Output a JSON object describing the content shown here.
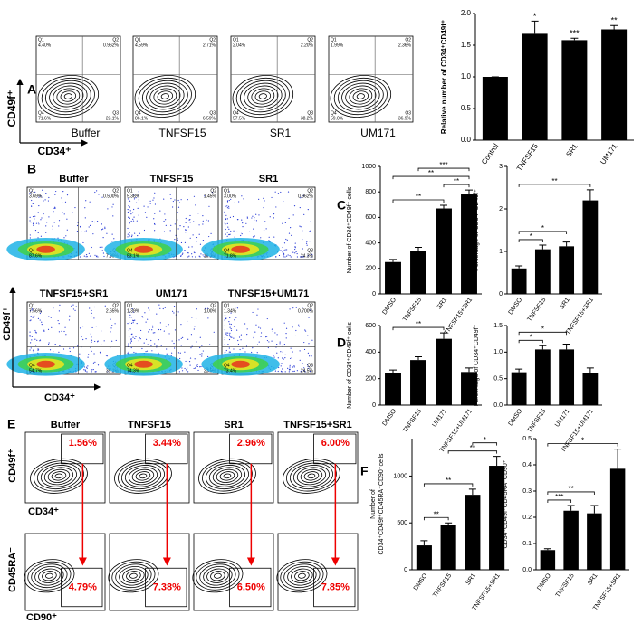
{
  "panel_labels": [
    "A",
    "B",
    "C",
    "D",
    "E",
    "F"
  ],
  "axis_labels": {
    "cd49f": "CD49f⁺",
    "cd34": "CD34⁺",
    "cd45ra": "CD45RA⁻",
    "cd90": "CD90⁺"
  },
  "quadrant_names": [
    "Q1",
    "Q2",
    "Q4",
    "Q3"
  ],
  "flow_a": [
    {
      "name": "Buffer",
      "quadrants": [
        "4.40%",
        "0.962%",
        "71.6%",
        "23.1%"
      ]
    },
    {
      "name": "TNFSF15",
      "quadrants": [
        "4.59%",
        "2.71%",
        "86.1%",
        "6.59%"
      ]
    },
    {
      "name": "SR1",
      "quadrants": [
        "2.04%",
        "2.20%",
        "57.5%",
        "38.2%"
      ]
    },
    {
      "name": "UM171",
      "quadrants": [
        "1.99%",
        "2.36%",
        "59.0%",
        "36.9%"
      ]
    }
  ],
  "flow_b": [
    {
      "name": "Buffer",
      "quadrants": [
        "3.69%",
        "0.500%",
        "87.6%",
        "7.99%"
      ]
    },
    {
      "name": "TNFSF15",
      "quadrants": [
        "5.38%",
        "1.45%",
        "83.1%",
        "10.1%"
      ]
    },
    {
      "name": "SR1",
      "quadrants": [
        "3.00%",
        "0.962%",
        "71.8%",
        "24.3%"
      ]
    },
    {
      "name": "TNFSF15+SR1",
      "quadrants": [
        "7.56%",
        "2.65%",
        "54.7%",
        "35.1%"
      ]
    },
    {
      "name": "UM171",
      "quadrants": [
        "1.39%",
        "1.00%",
        "74.3%",
        "23.5%"
      ]
    },
    {
      "name": "TNFSF15+UM171",
      "quadrants": [
        "1.34%",
        "0.700%",
        "73.4%",
        "24.5%"
      ]
    }
  ],
  "flow_e": [
    {
      "name": "Buffer",
      "gate_top": "1.56%",
      "gate_bottom": "4.79%"
    },
    {
      "name": "TNFSF15",
      "gate_top": "3.44%",
      "gate_bottom": "7.38%"
    },
    {
      "name": "SR1",
      "gate_top": "2.96%",
      "gate_bottom": "6.50%"
    },
    {
      "name": "TNFSF15+SR1",
      "gate_top": "6.00%",
      "gate_bottom": "7.85%"
    }
  ],
  "chart_data": [
    {
      "type": "bar",
      "y_label": "Relative number of CD34⁺CD49f⁺",
      "categories": [
        "Control",
        "TNFSF15",
        "SR1",
        "UM171"
      ],
      "values": [
        1,
        1.68,
        1.58,
        1.75
      ],
      "errors": [
        0,
        0.2,
        0.03,
        0.06
      ],
      "color": "#000000",
      "ylim": [
        0,
        2
      ],
      "yticks": [
        {
          "value": 0,
          "label": "0.0"
        },
        {
          "value": 0.5,
          "label": "0.5"
        },
        {
          "value": 1,
          "label": "1.0"
        },
        {
          "value": 1.5,
          "label": "1.5"
        },
        {
          "value": 2,
          "label": "2.0"
        }
      ],
      "annotations": [
        {
          "label": "*",
          "category": "TNFSF15"
        },
        {
          "label": "***",
          "category": "SR1"
        },
        {
          "label": "**",
          "category": "UM171"
        }
      ]
    },
    {
      "type": "bar",
      "y_label": "Number of CD34⁺CD49f⁺ cells",
      "categories": [
        "DMSO",
        "TNFSF15",
        "SR1",
        "TNFSF15+SR1"
      ],
      "values": [
        250,
        340,
        670,
        780
      ],
      "errors": [
        20,
        25,
        25,
        35
      ],
      "color": "#000000",
      "ylim": [
        0,
        1000
      ],
      "yticks": [
        0,
        200,
        400,
        600,
        800,
        1000
      ],
      "comparisons": [
        {
          "label": "**",
          "between": [
            "DMSO",
            "SR1"
          ]
        },
        {
          "label": "**",
          "between": [
            "SR1",
            "TNFSF15+SR1"
          ]
        },
        {
          "label": "**",
          "between": [
            "DMSO",
            "TNFSF15+SR1"
          ]
        },
        {
          "label": "***",
          "between": [
            "TNFSF15",
            "TNFSF15+SR1"
          ]
        }
      ]
    },
    {
      "type": "bar",
      "y_label": "Percentage of CD34⁺CD49f⁺",
      "categories": [
        "DMSO",
        "TNFSF15",
        "SR1",
        "TNFSF15+SR1"
      ],
      "values": [
        0.6,
        1.05,
        1.12,
        2.2
      ],
      "errors": [
        0.06,
        0.1,
        0.1,
        0.25
      ],
      "color": "#000000",
      "ylim": [
        0,
        3
      ],
      "yticks": [
        0,
        1,
        2,
        3
      ],
      "comparisons": [
        {
          "label": "*",
          "between": [
            "DMSO",
            "TNFSF15"
          ]
        },
        {
          "label": "*",
          "between": [
            "DMSO",
            "SR1"
          ]
        },
        {
          "label": "**",
          "between": [
            "DMSO",
            "TNFSF15+SR1"
          ]
        }
      ]
    },
    {
      "type": "bar",
      "y_label": "Number of CD34⁺CD49f⁺ cells",
      "categories": [
        "DMSO",
        "TNFSF15",
        "UM171",
        "TNFSF15+UM171"
      ],
      "values": [
        245,
        340,
        500,
        250
      ],
      "errors": [
        20,
        25,
        45,
        30
      ],
      "color": "#000000",
      "ylim": [
        0,
        600
      ],
      "yticks": [
        0,
        200,
        400,
        600
      ],
      "comparisons": [
        {
          "label": "**",
          "between": [
            "DMSO",
            "UM171"
          ]
        }
      ]
    },
    {
      "type": "bar",
      "y_label": "Percentage of CD34⁺CD49f⁺",
      "categories": [
        "DMSO",
        "TNFSF15",
        "UM171",
        "TNFSF15+UM171"
      ],
      "values": [
        0.62,
        1.05,
        1.05,
        0.6
      ],
      "errors": [
        0.06,
        0.07,
        0.1,
        0.1
      ],
      "color": "#000000",
      "ylim": [
        0,
        1.5
      ],
      "yticks": [
        {
          "value": 0,
          "label": "0.0"
        },
        {
          "value": 0.5,
          "label": "0.5"
        },
        {
          "value": 1,
          "label": "1.0"
        },
        {
          "value": 1.5,
          "label": "1.5"
        }
      ],
      "comparisons": [
        {
          "label": "*",
          "between": [
            "DMSO",
            "TNFSF15"
          ]
        },
        {
          "label": "*",
          "between": [
            "DMSO",
            "UM171"
          ]
        }
      ]
    },
    {
      "type": "bar",
      "y_label": [
        "Number of",
        "CD34⁺CD49f⁺CD45RA⁻CD90⁺cells"
      ],
      "categories": [
        "DMSO",
        "TNFSF15",
        "SR1",
        "TNFSF15+SR1"
      ],
      "values": [
        260,
        480,
        800,
        1110
      ],
      "errors": [
        50,
        20,
        60,
        100
      ],
      "color": "#000000",
      "ylim": [
        0,
        1400
      ],
      "yticks": [
        0,
        500,
        1000
      ],
      "comparisons": [
        {
          "label": "**",
          "between": [
            "DMSO",
            "TNFSF15"
          ]
        },
        {
          "label": "**",
          "between": [
            "DMSO",
            "SR1"
          ]
        },
        {
          "label": "**",
          "between": [
            "TNFSF15",
            "TNFSF15+SR1"
          ]
        },
        {
          "label": "*",
          "between": [
            "SR1",
            "TNFSF15+SR1"
          ]
        }
      ]
    },
    {
      "type": "bar",
      "y_label": [
        "Percentage of",
        "CD34⁺CD49f⁺CD45RA⁻CD90⁺"
      ],
      "categories": [
        "DMSO",
        "TNFSF15",
        "SR1",
        "TNFSF15+SR1"
      ],
      "values": [
        0.075,
        0.225,
        0.215,
        0.385
      ],
      "errors": [
        0.005,
        0.02,
        0.03,
        0.075
      ],
      "color": "#000000",
      "ylim": [
        0,
        0.5
      ],
      "yticks": [
        {
          "value": 0,
          "label": "0.0"
        },
        {
          "value": 0.1,
          "label": "0.1"
        },
        {
          "value": 0.2,
          "label": "0.2"
        },
        {
          "value": 0.3,
          "label": "0.3"
        },
        {
          "value": 0.4,
          "label": "0.4"
        },
        {
          "value": 0.5,
          "label": "0.5"
        }
      ],
      "comparisons": [
        {
          "label": "***",
          "between": [
            "DMSO",
            "TNFSF15"
          ]
        },
        {
          "label": "**",
          "between": [
            "DMSO",
            "SR1"
          ]
        },
        {
          "label": "*",
          "between": [
            "DMSO",
            "TNFSF15+SR1"
          ]
        }
      ]
    }
  ]
}
